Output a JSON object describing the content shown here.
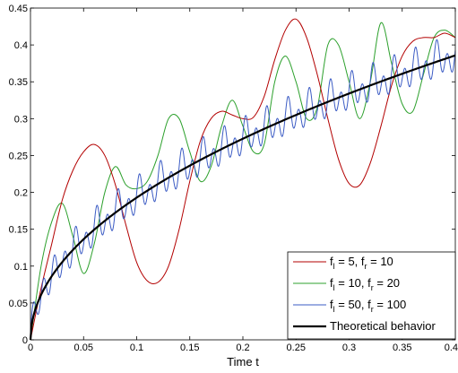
{
  "chart_data": {
    "type": "line",
    "xlabel": "Time t",
    "ylabel": "",
    "xlim": [
      0,
      0.4
    ],
    "ylim": [
      0,
      0.45
    ],
    "x_ticks": [
      "0",
      "0.05",
      "0.1",
      "0.15",
      "0.2",
      "0.25",
      "0.3",
      "0.35",
      "0.4"
    ],
    "y_ticks": [
      "0",
      "0.05",
      "0.1",
      "0.15",
      "0.2",
      "0.25",
      "0.3",
      "0.35",
      "0.4",
      "0.45"
    ],
    "grid": false,
    "legend_position": "bottom-right",
    "series": [
      {
        "name": "f_l = 5, f_r = 10",
        "legend": {
          "a": "f",
          "a_sub": "l",
          "b": " = 5, f",
          "b_sub": "r",
          "c": " = 10"
        },
        "color": "#b30000",
        "x": [
          0,
          0.01,
          0.02,
          0.03,
          0.04,
          0.05,
          0.06,
          0.07,
          0.08,
          0.09,
          0.1,
          0.11,
          0.12,
          0.13,
          0.14,
          0.15,
          0.16,
          0.17,
          0.18,
          0.19,
          0.2,
          0.21,
          0.22,
          0.23,
          0.24,
          0.25,
          0.26,
          0.27,
          0.28,
          0.29,
          0.3,
          0.31,
          0.32,
          0.33,
          0.34,
          0.35,
          0.36,
          0.37,
          0.38,
          0.39,
          0.4
        ],
        "y": [
          0,
          0.07,
          0.13,
          0.19,
          0.23,
          0.255,
          0.265,
          0.25,
          0.21,
          0.155,
          0.105,
          0.08,
          0.078,
          0.1,
          0.15,
          0.215,
          0.27,
          0.3,
          0.31,
          0.305,
          0.3,
          0.302,
          0.33,
          0.38,
          0.42,
          0.435,
          0.41,
          0.36,
          0.3,
          0.245,
          0.212,
          0.21,
          0.24,
          0.29,
          0.345,
          0.385,
          0.405,
          0.41,
          0.41,
          0.416,
          0.41
        ]
      },
      {
        "name": "f_l = 10, f_r = 20",
        "legend": {
          "a": "f",
          "a_sub": "l",
          "b": " = 10, f",
          "b_sub": "r",
          "c": " = 20"
        },
        "color": "#2ca02c",
        "x": [
          0,
          0.01,
          0.02,
          0.03,
          0.04,
          0.05,
          0.06,
          0.07,
          0.08,
          0.09,
          0.1,
          0.11,
          0.12,
          0.13,
          0.14,
          0.15,
          0.16,
          0.17,
          0.18,
          0.19,
          0.2,
          0.21,
          0.22,
          0.23,
          0.24,
          0.25,
          0.26,
          0.27,
          0.28,
          0.29,
          0.3,
          0.31,
          0.32,
          0.33,
          0.34,
          0.35,
          0.36,
          0.37,
          0.38,
          0.39,
          0.4
        ],
        "y": [
          0,
          0.1,
          0.16,
          0.185,
          0.14,
          0.09,
          0.13,
          0.2,
          0.235,
          0.21,
          0.205,
          0.215,
          0.25,
          0.3,
          0.3,
          0.255,
          0.215,
          0.235,
          0.29,
          0.325,
          0.29,
          0.255,
          0.265,
          0.35,
          0.385,
          0.35,
          0.3,
          0.315,
          0.4,
          0.4,
          0.35,
          0.3,
          0.35,
          0.43,
          0.375,
          0.32,
          0.31,
          0.36,
          0.41,
          0.42,
          0.41
        ]
      },
      {
        "name": "f_l = 50, f_r = 100",
        "legend": {
          "a": "f",
          "a_sub": "l",
          "b": " = 50, f",
          "b_sub": "r",
          "c": " = 100"
        },
        "color": "#3b5bc4",
        "base": "sqrt",
        "osc_amplitude": 0.018,
        "osc_frequency": 100,
        "x_range": [
          0,
          0.4
        ]
      },
      {
        "name": "Theoretical behavior",
        "legend": {
          "a": "Theoretical behavior"
        },
        "color": "#000000",
        "function": "0.61*sqrt(t)",
        "x_range": [
          0,
          0.4
        ]
      }
    ]
  }
}
